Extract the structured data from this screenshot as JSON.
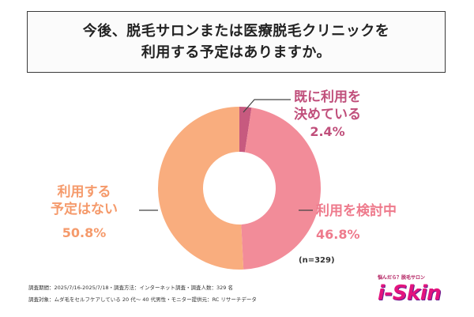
{
  "title_lines": [
    "今後、脱毛サロンまたは医療脱毛クリニックを",
    "利用する予定はありますか。"
  ],
  "chart_data": {
    "type": "pie",
    "donut": true,
    "categories": [
      "既に利用を決めている",
      "利用を検討中",
      "利用する予定はない"
    ],
    "values": [
      2.4,
      46.8,
      50.8
    ],
    "unit": "%",
    "colors": [
      "#c75a7f",
      "#f28c99",
      "#f9ad7e"
    ],
    "legend": "none",
    "sample_size": "(n=329)"
  },
  "labels": {
    "decided": {
      "line1": "既に利用を",
      "line2": "決めている",
      "value": "2.4%",
      "color": "#c04f7b"
    },
    "considering": {
      "name": "利用を検討中",
      "value": "46.8%",
      "color": "#ee7a8c"
    },
    "none": {
      "line1": "利用する",
      "line2": "予定はない",
      "value": "50.8%",
      "color": "#f59a6b"
    }
  },
  "footer": {
    "line1": "調査期間：2025/7/16-2025/7/18・調査方法：インターネット調査・調査人数：329 名",
    "line2": "調査対象：ムダ毛をセルフケアしている 20 代〜 40 代男性・モニター提供元：RC リサーチデータ"
  },
  "logo": {
    "tagline": "悩んだら？脱毛サロン",
    "text": "i-Skin"
  }
}
